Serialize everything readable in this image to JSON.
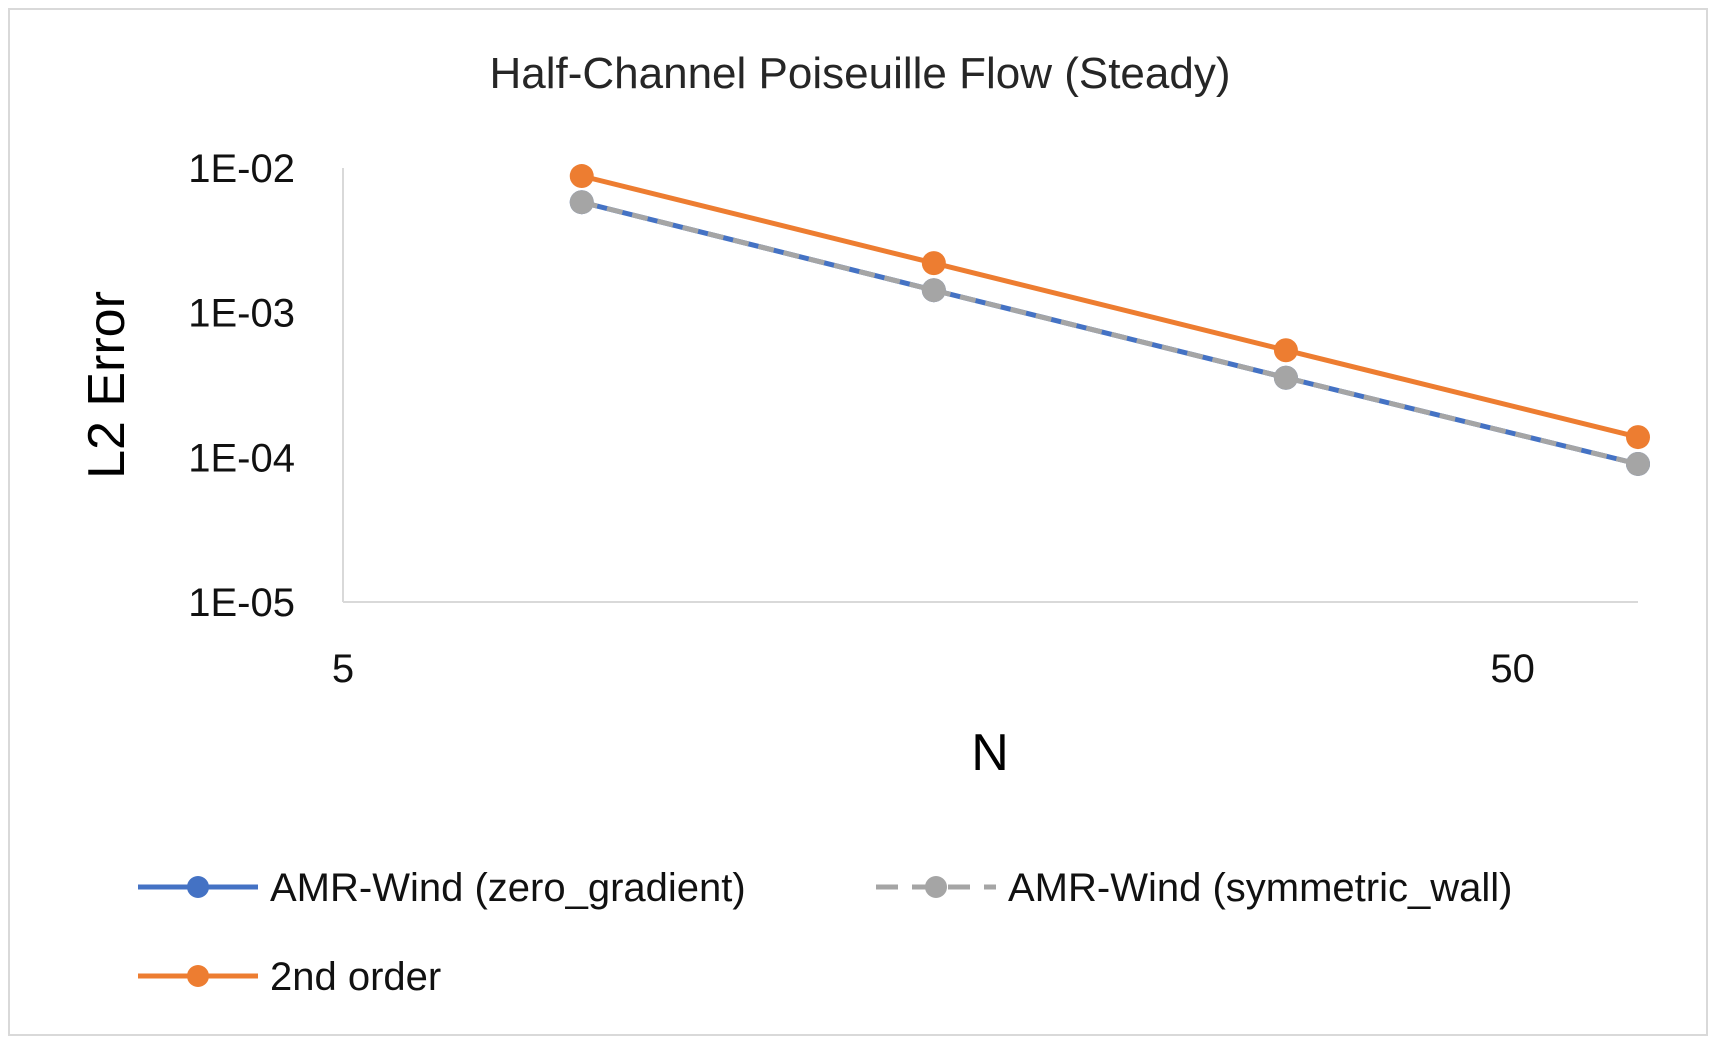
{
  "chart_data": {
    "type": "line",
    "title": "Half-Channel Poiseuille Flow (Steady)",
    "xlabel": "N",
    "ylabel": "L2 Error",
    "x_scale": "log",
    "y_scale": "log",
    "xlim": [
      5,
      64
    ],
    "ylim": [
      1e-05,
      0.01
    ],
    "x_ticks": [
      {
        "value": 5,
        "label": "5"
      },
      {
        "value": 50,
        "label": "50"
      }
    ],
    "y_ticks": [
      {
        "value": 0.01,
        "label": "1E-02"
      },
      {
        "value": 0.001,
        "label": "1E-03"
      },
      {
        "value": 0.0001,
        "label": "1E-04"
      },
      {
        "value": 1e-05,
        "label": "1E-05"
      }
    ],
    "grid": false,
    "legend_position": "bottom",
    "series": [
      {
        "name": "AMR-Wind (zero_gradient)",
        "color": "#4472C4",
        "dash": "solid",
        "x": [
          8,
          16,
          32,
          64
        ],
        "y": [
          0.0058,
          0.00143,
          0.000355,
          9e-05
        ]
      },
      {
        "name": "AMR-Wind (symmetric_wall)",
        "color": "#A5A5A5",
        "dash": "dashed",
        "x": [
          8,
          16,
          32,
          64
        ],
        "y": [
          0.0058,
          0.00143,
          0.000355,
          9e-05
        ]
      },
      {
        "name": "2nd order",
        "color": "#ED7D31",
        "dash": "solid",
        "x": [
          8,
          16,
          32,
          64
        ],
        "y": [
          0.0088,
          0.0022,
          0.00055,
          0.000138
        ]
      }
    ]
  }
}
